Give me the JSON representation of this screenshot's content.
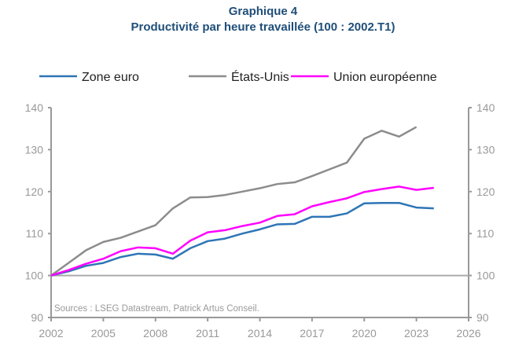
{
  "chart_data": {
    "type": "line",
    "title": "Graphique 4",
    "subtitle": "Productivité par heure travaillée (100 : 2002.T1)",
    "xlabel": "",
    "ylabel": "",
    "xlim": [
      2002,
      2026
    ],
    "ylim": [
      90,
      140
    ],
    "xticks": [
      "2002",
      "2005",
      "2008",
      "2011",
      "2014",
      "2017",
      "2020",
      "2023",
      "2026"
    ],
    "yticks": [
      "90",
      "100",
      "110",
      "120",
      "130",
      "140"
    ],
    "legend_position": "top",
    "source": "Sources : LSEG Datastream, Patrick Artus Conseil.",
    "series": [
      {
        "name": "Zone euro",
        "color": "#2e75b6",
        "x_start": 2002,
        "values": [
          100,
          101,
          102.3,
          103,
          104.4,
          105.2,
          105,
          104,
          106.5,
          108.2,
          108.8,
          110,
          111,
          112.2,
          112.3,
          114,
          114,
          114.8,
          117.2,
          117.3,
          117.3,
          116.2,
          116
        ]
      },
      {
        "name": "États-Unis",
        "color": "#8c8c8c",
        "x_start": 2002,
        "values": [
          100,
          103,
          106,
          108,
          109,
          110.5,
          112,
          116,
          118.6,
          118.7,
          119.2,
          120,
          120.8,
          121.8,
          122.2,
          123.7,
          125.3,
          126.9,
          132.6,
          134.5,
          133.1,
          135.4
        ]
      },
      {
        "name": "Union européenne",
        "color": "#ff00ff",
        "x_start": 2002,
        "values": [
          100,
          101.3,
          102.8,
          104,
          105.8,
          106.7,
          106.5,
          105.2,
          108.3,
          110.3,
          110.8,
          111.8,
          112.6,
          114.2,
          114.6,
          116.5,
          117.5,
          118.4,
          119.9,
          120.6,
          121.2,
          120.4,
          120.9
        ]
      }
    ]
  }
}
